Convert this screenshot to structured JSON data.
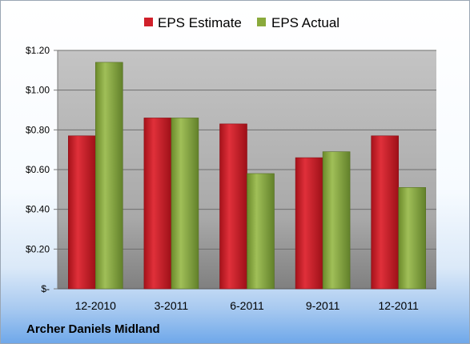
{
  "company": "Archer Daniels Midland",
  "colors": {
    "estimate": "#d0202a",
    "actual": "#8aaa3c"
  },
  "chart_data": {
    "type": "bar",
    "categories": [
      "12-2010",
      "3-2011",
      "6-2011",
      "9-2011",
      "12-2011"
    ],
    "series": [
      {
        "name": "EPS Estimate",
        "values": [
          0.77,
          0.86,
          0.83,
          0.66,
          0.77
        ]
      },
      {
        "name": "EPS Actual",
        "values": [
          1.14,
          0.86,
          0.58,
          0.69,
          0.51
        ]
      }
    ],
    "yticks": [
      "$-",
      "$0.20",
      "$0.40",
      "$0.60",
      "$0.80",
      "$1.00",
      "$1.20"
    ],
    "ylim": [
      0,
      1.2
    ],
    "grid": true,
    "legend_position": "top"
  }
}
